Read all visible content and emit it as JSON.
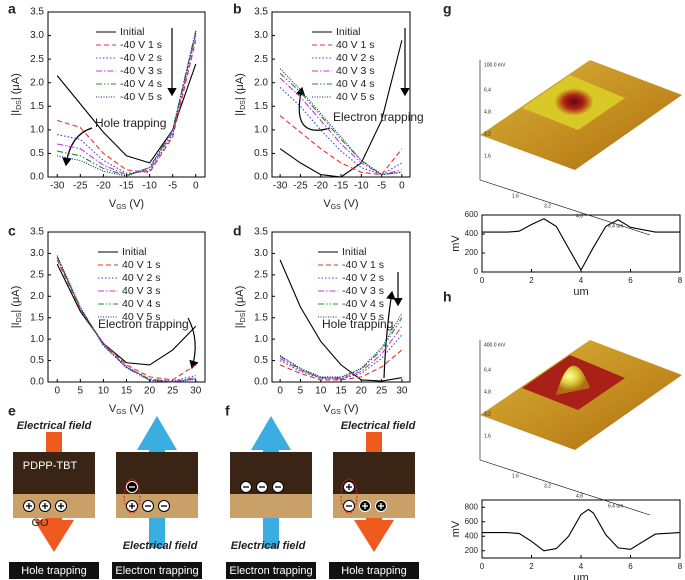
{
  "panel_labels": [
    "a",
    "b",
    "c",
    "d",
    "e",
    "f",
    "g",
    "h"
  ],
  "chart_data": [
    {
      "type": "line",
      "xlim": [
        -32,
        2
      ],
      "xticks": [
        -30,
        -25,
        -20,
        -15,
        -10,
        -5,
        0
      ],
      "ylim": [
        0,
        3.5
      ],
      "yticks": [
        {
          "value": 0,
          "label": "0.0"
        },
        0.5,
        {
          "value": 1,
          "label": "1.0"
        },
        1.5,
        {
          "value": 2,
          "label": "2.0"
        },
        2.5,
        {
          "value": 3,
          "label": "3.0"
        },
        3.5
      ],
      "xlabel": {
        "main": "V",
        "sub": "GS",
        "tail": " (V)"
      },
      "ylabel": {
        "main": "|I",
        "sub": "DS",
        "tail": "| (μA)"
      },
      "legend": "upper center",
      "annotation": "Hole trapping",
      "x": [
        -30,
        -25,
        -20,
        -15,
        -10,
        -5,
        0
      ],
      "series": [
        {
          "name": "Initial",
          "color": "#000000",
          "dash": "solid",
          "values": [
            2.15,
            1.55,
            0.95,
            0.45,
            0.3,
            1.0,
            2.4
          ]
        },
        {
          "name": "-40 V 1 s",
          "color": "#e8302a",
          "dash": "dashed",
          "values": [
            1.2,
            1.05,
            0.5,
            0.15,
            0.1,
            0.85,
            2.9
          ]
        },
        {
          "name": "-40 V 2 s",
          "color": "#3048e0",
          "dash": "dotted",
          "values": [
            0.9,
            0.8,
            0.35,
            0.08,
            0.12,
            0.9,
            3.0
          ]
        },
        {
          "name": "-40 V 3 s",
          "color": "#d030d0",
          "dash": "dashdot",
          "values": [
            0.7,
            0.6,
            0.25,
            0.05,
            0.15,
            0.95,
            3.05
          ]
        },
        {
          "name": "-40 V 4 s",
          "color": "#209020",
          "dash": "dashdotdot",
          "values": [
            0.55,
            0.45,
            0.18,
            0.03,
            0.2,
            1.0,
            3.1
          ]
        },
        {
          "name": "-40 V 5 s",
          "color": "#102080",
          "dash": "shortdot",
          "values": [
            0.45,
            0.35,
            0.12,
            0.02,
            0.2,
            1.0,
            3.1
          ]
        }
      ]
    },
    {
      "type": "line",
      "xlim": [
        -32,
        2
      ],
      "xticks": [
        -30,
        -25,
        -20,
        -15,
        -10,
        -5,
        0
      ],
      "ylim": [
        0,
        3.5
      ],
      "yticks": [
        {
          "value": 0,
          "label": "0.0"
        },
        0.5,
        {
          "value": 1,
          "label": "1.0"
        },
        1.5,
        {
          "value": 2,
          "label": "2.0"
        },
        2.5,
        {
          "value": 3,
          "label": "3.0"
        },
        3.5
      ],
      "xlabel": {
        "main": "V",
        "sub": "GS",
        "tail": " (V)"
      },
      "ylabel": {
        "main": "|I",
        "sub": "DS",
        "tail": "| (μA)"
      },
      "legend": "upper center",
      "annotation": "Electron trapping",
      "x": [
        -30,
        -25,
        -20,
        -15,
        -10,
        -5,
        0
      ],
      "series": [
        {
          "name": "Initial",
          "color": "#000000",
          "dash": "solid",
          "values": [
            0.6,
            0.3,
            0.05,
            0.0,
            0.3,
            1.2,
            2.9
          ]
        },
        {
          "name": "40 V 1 s",
          "color": "#e8302a",
          "dash": "dashed",
          "values": [
            1.3,
            0.95,
            0.6,
            0.3,
            0.1,
            0.05,
            0.6
          ]
        },
        {
          "name": "40 V 2 s",
          "color": "#3048e0",
          "dash": "dotted",
          "values": [
            1.9,
            1.5,
            1.0,
            0.55,
            0.2,
            0.05,
            0.3
          ]
        },
        {
          "name": "40 V 3 s",
          "color": "#d030d0",
          "dash": "dashdot",
          "values": [
            2.1,
            1.7,
            1.2,
            0.7,
            0.3,
            0.05,
            0.15
          ]
        },
        {
          "name": "40 V 4 s",
          "color": "#209020",
          "dash": "dashdotdot",
          "values": [
            2.2,
            1.8,
            1.3,
            0.8,
            0.35,
            0.05,
            0.1
          ]
        },
        {
          "name": "40 V 5 s",
          "color": "#102080",
          "dash": "shortdot",
          "values": [
            2.3,
            1.85,
            1.35,
            0.85,
            0.35,
            0.05,
            0.1
          ]
        }
      ]
    },
    {
      "type": "line",
      "xlim": [
        -2,
        32
      ],
      "xticks": [
        0,
        5,
        10,
        15,
        20,
        25,
        30
      ],
      "ylim": [
        0,
        3.5
      ],
      "yticks": [
        {
          "value": 0,
          "label": "0.0"
        },
        0.5,
        {
          "value": 1,
          "label": "1.0"
        },
        1.5,
        {
          "value": 2,
          "label": "2.0"
        },
        2.5,
        {
          "value": 3,
          "label": "3.0"
        },
        3.5
      ],
      "xlabel": {
        "main": "V",
        "sub": "GS",
        "tail": " (V)"
      },
      "ylabel": {
        "main": "|I",
        "sub": "DS",
        "tail": "| (μA)"
      },
      "legend": "upper center",
      "annotation": "Electron trapping",
      "x": [
        0,
        5,
        10,
        15,
        20,
        25,
        30
      ],
      "series": [
        {
          "name": "Initial",
          "color": "#000000",
          "dash": "solid",
          "values": [
            2.75,
            1.65,
            0.9,
            0.45,
            0.4,
            0.75,
            1.3
          ]
        },
        {
          "name": "40 V 1 s",
          "color": "#e8302a",
          "dash": "dashed",
          "values": [
            2.85,
            1.7,
            0.9,
            0.4,
            0.12,
            0.05,
            0.4
          ]
        },
        {
          "name": "40 V 2 s",
          "color": "#3048e0",
          "dash": "dotted",
          "values": [
            2.9,
            1.72,
            0.88,
            0.36,
            0.07,
            0.02,
            0.15
          ]
        },
        {
          "name": "40 V 3 s",
          "color": "#d030d0",
          "dash": "dashdot",
          "values": [
            2.9,
            1.72,
            0.87,
            0.35,
            0.06,
            0.01,
            0.1
          ]
        },
        {
          "name": "40 V 4 s",
          "color": "#209020",
          "dash": "dashdotdot",
          "values": [
            2.92,
            1.73,
            0.86,
            0.34,
            0.05,
            0.0,
            0.08
          ]
        },
        {
          "name": "40 V 5 s",
          "color": "#102080",
          "dash": "shortdot",
          "values": [
            2.95,
            1.75,
            0.85,
            0.33,
            0.04,
            0.0,
            0.06
          ]
        }
      ]
    },
    {
      "type": "line",
      "xlim": [
        -2,
        32
      ],
      "xticks": [
        0,
        5,
        10,
        15,
        20,
        25,
        30
      ],
      "ylim": [
        0,
        3.5
      ],
      "yticks": [
        {
          "value": 0,
          "label": "0.0"
        },
        0.5,
        {
          "value": 1,
          "label": "1.0"
        },
        1.5,
        {
          "value": 2,
          "label": "2.0"
        },
        2.5,
        {
          "value": 3,
          "label": "3.0"
        },
        3.5
      ],
      "xlabel": {
        "main": "V",
        "sub": "GS",
        "tail": " (V)"
      },
      "ylabel": {
        "main": "|I",
        "sub": "DS",
        "tail": "| (μA)"
      },
      "legend": "upper center",
      "annotation": "Hole trapping",
      "x": [
        0,
        5,
        10,
        15,
        20,
        25,
        30
      ],
      "series": [
        {
          "name": "Initial",
          "color": "#000000",
          "dash": "solid",
          "values": [
            2.85,
            1.75,
            0.95,
            0.4,
            0.05,
            0.02,
            0.1
          ]
        },
        {
          "name": "-40 V 1 s",
          "color": "#e8302a",
          "dash": "dashed",
          "values": [
            0.4,
            0.2,
            0.05,
            0.05,
            0.12,
            0.35,
            0.75
          ]
        },
        {
          "name": "-40 V 2 s",
          "color": "#3048e0",
          "dash": "dotted",
          "values": [
            0.5,
            0.25,
            0.08,
            0.07,
            0.2,
            0.55,
            1.1
          ]
        },
        {
          "name": "-40 V 3 s",
          "color": "#d030d0",
          "dash": "dashdot",
          "values": [
            0.55,
            0.28,
            0.1,
            0.08,
            0.25,
            0.65,
            1.3
          ]
        },
        {
          "name": "-40 V 4 s",
          "color": "#209020",
          "dash": "dashdotdot",
          "values": [
            0.6,
            0.3,
            0.1,
            0.1,
            0.3,
            0.75,
            1.5
          ]
        },
        {
          "name": "-40 V 5 s",
          "color": "#102080",
          "dash": "shortdot",
          "values": [
            0.62,
            0.32,
            0.12,
            0.12,
            0.32,
            0.8,
            1.6
          ]
        }
      ]
    },
    {
      "type": "line",
      "xlim": [
        0,
        8
      ],
      "xticks": [
        0,
        2,
        4,
        6,
        8
      ],
      "ylim": [
        0,
        600
      ],
      "yticks": [
        0,
        200,
        400,
        600
      ],
      "xlabel": "um",
      "ylabel": "mV",
      "x": [
        0,
        1,
        1.5,
        2,
        2.5,
        3,
        3.5,
        4,
        4.5,
        5,
        5.5,
        6,
        7,
        8
      ],
      "series": [
        {
          "color": "#000000",
          "dash": "solid",
          "values": [
            420,
            420,
            430,
            500,
            560,
            480,
            250,
            20,
            260,
            480,
            550,
            470,
            420,
            420
          ]
        }
      ]
    },
    {
      "type": "line",
      "xlim": [
        0,
        8
      ],
      "xticks": [
        0,
        2,
        4,
        6,
        8
      ],
      "ylim": [
        100,
        900
      ],
      "yticks": [
        200,
        400,
        600,
        800
      ],
      "xlabel": "um",
      "ylabel": "mV",
      "x": [
        0,
        1,
        1.5,
        2,
        2.5,
        3,
        3.5,
        4,
        4.3,
        4.5,
        5,
        5.5,
        6,
        7,
        8
      ],
      "series": [
        {
          "color": "#000000",
          "dash": "solid",
          "values": [
            450,
            450,
            440,
            330,
            200,
            230,
            400,
            700,
            770,
            720,
            420,
            240,
            220,
            430,
            450
          ]
        }
      ]
    }
  ],
  "diagrams": {
    "e": {
      "top_label": "Electrical field",
      "layer_top": "PDPP-TBT",
      "layer_bottom": "GO",
      "bottom_label": "Electrical field",
      "left_caption": "Hole trapping",
      "right_caption": "Electron trapping"
    },
    "f": {
      "top_label": "Electrical field",
      "bottom_label": "Electrical field",
      "left_caption": "Electron trapping",
      "right_caption": "Hole trapping"
    }
  },
  "afm": {
    "g": {
      "z_top": "100.0 mV",
      "left_ticks": [
        "6.4",
        "4.8",
        "3.2",
        "1.6"
      ],
      "bottom_ticks": [
        "1.6",
        "3.2",
        "4.8",
        "6.4 um"
      ]
    },
    "h": {
      "z_top": "400.0 mV",
      "left_ticks": [
        "6.4",
        "4.8",
        "3.2",
        "1.6"
      ],
      "bottom_ticks": [
        "1.6",
        "3.2",
        "4.8",
        "6.4 um"
      ]
    }
  }
}
